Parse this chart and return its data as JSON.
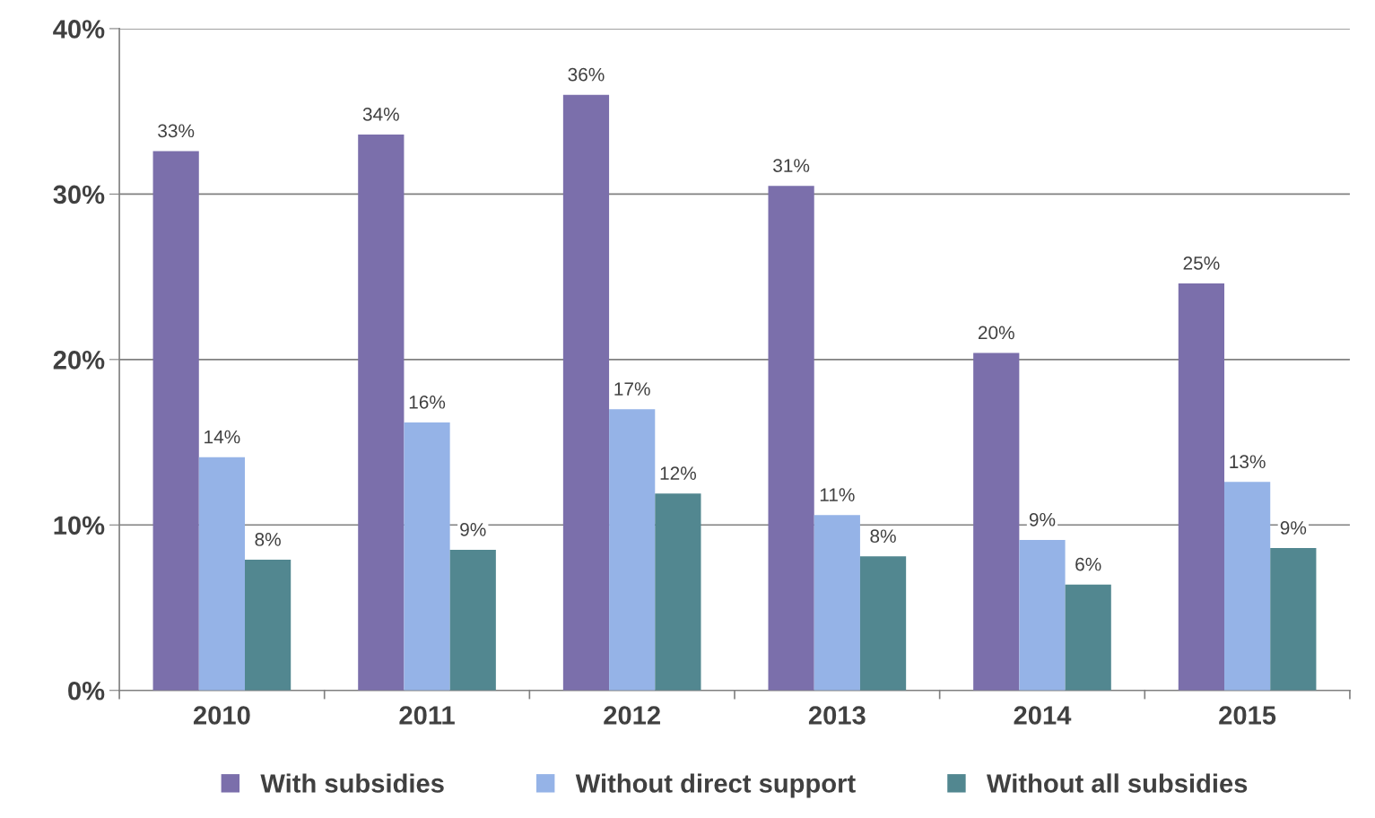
{
  "chart_data": {
    "type": "bar",
    "categories": [
      "2010",
      "2011",
      "2012",
      "2013",
      "2014",
      "2015"
    ],
    "series": [
      {
        "name": "With subsidies",
        "color": "#7b6fab",
        "values": [
          32.6,
          33.6,
          36.0,
          30.5,
          20.4,
          24.6
        ],
        "value_labels": [
          "33%",
          "34%",
          "36%",
          "31%",
          "20%",
          "25%"
        ]
      },
      {
        "name": "Without direct support",
        "color": "#95b3e7",
        "values": [
          14.1,
          16.2,
          17.0,
          10.6,
          9.1,
          12.6
        ],
        "value_labels": [
          "14%",
          "16%",
          "17%",
          "11%",
          "9%",
          "13%"
        ]
      },
      {
        "name": "Without all subsidies",
        "color": "#528790",
        "values": [
          7.9,
          8.5,
          11.9,
          8.1,
          6.4,
          8.6
        ],
        "value_labels": [
          "8%",
          "9%",
          "12%",
          "8%",
          "6%",
          "9%"
        ]
      }
    ],
    "ylim": [
      0,
      40
    ],
    "yticks": [
      {
        "value": 0,
        "label": "0%"
      },
      {
        "value": 10,
        "label": "10%"
      },
      {
        "value": 20,
        "label": "20%"
      },
      {
        "value": 30,
        "label": "30%"
      },
      {
        "value": 40,
        "label": "40%"
      }
    ],
    "grid": "y",
    "legend": "bottom"
  }
}
